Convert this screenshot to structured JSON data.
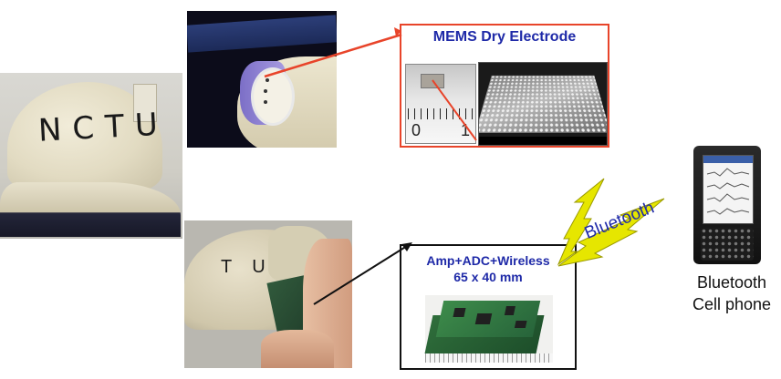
{
  "mems_panel": {
    "title": "MEMS Dry Electrode",
    "ruler_labels": [
      "0",
      "1"
    ]
  },
  "amp_panel": {
    "line1": "Amp+ADC+Wireless",
    "line2": "65 x 40 mm"
  },
  "cap_letters": "NCTU",
  "hand_cap_letters": "TU",
  "wireless_label": "Bluetooth",
  "phone_caption": {
    "line1": "Bluetooth",
    "line2": "Cell phone"
  },
  "colors": {
    "title_blue": "#1f2aa8",
    "pointer_red": "#e8442a",
    "bolt_yellow": "#e6e600",
    "pointer_black": "#111111"
  }
}
